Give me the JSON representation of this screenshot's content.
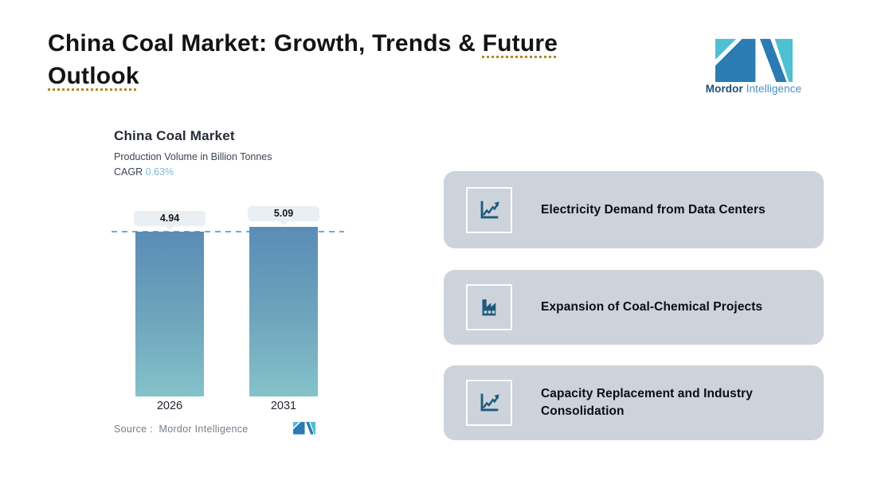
{
  "header": {
    "title_prefix": "China Coal Market: Growth, Trends & ",
    "title_underline_word1": "Future",
    "title_underline_word2": "Outlook",
    "underline_color": "#b8861d"
  },
  "logo": {
    "name": "Mordor Intelligence",
    "text_bold": "Mordor",
    "text_regular": "Intelligence",
    "color_teal": "#4fc0d1",
    "color_blue": "#2a7cb3",
    "text_color_bold": "#1b5078",
    "text_color_regular": "#4d8fbb"
  },
  "chart_data": {
    "type": "bar",
    "title": "China Coal Market",
    "subtitle": "Production Volume in Billion Tonnes",
    "cagr_label": "CAGR",
    "cagr_value": "0.63%",
    "categories": [
      "2026",
      "2031"
    ],
    "values": [
      4.94,
      5.09
    ],
    "value_labels": [
      "4.94",
      "5.09"
    ],
    "reference_line_value": 4.94,
    "ylim": [
      0,
      5.09
    ],
    "grid": false,
    "legend": false,
    "bar_color_top": "#5a8cb5",
    "bar_color_bottom": "#85c2ca",
    "dashed_line_color": "#74a9d2",
    "value_pill_bg": "#e9eff3",
    "source_label": "Source :  Mordor Intelligence"
  },
  "cards": {
    "bg_color": "#cdd3db",
    "icon_color": "#1d5a7c",
    "items": [
      {
        "icon": "line-chart-icon",
        "label": "Electricity Demand from Data Centers"
      },
      {
        "icon": "factory-icon",
        "label": "Expansion of Coal-Chemical Projects"
      },
      {
        "icon": "line-chart-icon",
        "label": "Capacity Replacement and Industry Consolidation"
      }
    ]
  }
}
